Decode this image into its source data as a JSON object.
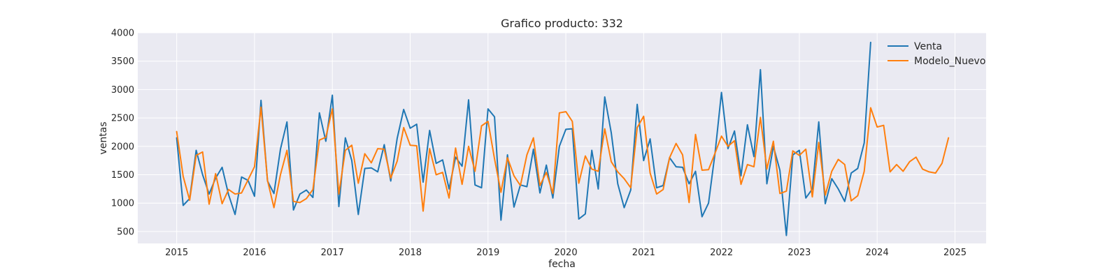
{
  "chart_data": {
    "type": "line",
    "title": "Grafico producto: 332",
    "xlabel": "fecha",
    "ylabel": "ventas",
    "x_ticks": [
      "2015",
      "2016",
      "2017",
      "2018",
      "2019",
      "2020",
      "2021",
      "2022",
      "2023",
      "2024",
      "2025"
    ],
    "y_ticks": [
      "500",
      "1000",
      "1500",
      "2000",
      "2500",
      "3000",
      "3500",
      "4000"
    ],
    "xlim": [
      2014.5,
      2025.4
    ],
    "ylim": [
      290,
      4000
    ],
    "grid": true,
    "legend_position": "top-right",
    "colors": {
      "background": "#eaeaf2",
      "Venta": "#1f77b4",
      "Modelo_Nuevo": "#ff7f0e"
    },
    "series": [
      {
        "name": "Venta",
        "start": "2015-01",
        "values": [
          2150,
          960,
          1080,
          1930,
          1500,
          1160,
          1440,
          1630,
          1150,
          800,
          1460,
          1400,
          1120,
          2810,
          1390,
          1170,
          1950,
          2430,
          880,
          1160,
          1230,
          1100,
          2590,
          2090,
          2900,
          940,
          2150,
          1750,
          800,
          1610,
          1620,
          1550,
          2030,
          1390,
          2140,
          2650,
          2320,
          2390,
          1370,
          2280,
          1700,
          1760,
          1250,
          1810,
          1650,
          2820,
          1320,
          1270,
          2660,
          2520,
          700,
          1850,
          930,
          1320,
          1290,
          1950,
          1180,
          1670,
          1090,
          2000,
          2300,
          2310,
          720,
          810,
          1930,
          1250,
          2870,
          2240,
          1340,
          920,
          1230,
          2740,
          1750,
          2130,
          1270,
          1310,
          1800,
          1640,
          1630,
          1340,
          1560,
          760,
          1000,
          1880,
          2950,
          1960,
          2270,
          1480,
          2380,
          1820,
          3350,
          1340,
          2000,
          1580,
          430,
          1850,
          1930,
          1090,
          1250,
          2430,
          990,
          1430,
          1250,
          1030,
          1530,
          1610,
          2060,
          3830
        ]
      },
      {
        "name": "Modelo_Nuevo",
        "start": "2015-01",
        "values": [
          2260,
          1470,
          1050,
          1840,
          1900,
          980,
          1520,
          990,
          1240,
          1160,
          1180,
          1410,
          1640,
          2690,
          1400,
          920,
          1500,
          1930,
          1030,
          1010,
          1080,
          1240,
          2110,
          2160,
          2660,
          1160,
          1930,
          2020,
          1350,
          1870,
          1710,
          1960,
          1950,
          1440,
          1740,
          2330,
          2020,
          2010,
          860,
          1960,
          1500,
          1540,
          1090,
          1970,
          1330,
          2000,
          1560,
          2360,
          2440,
          1780,
          1190,
          1800,
          1480,
          1310,
          1850,
          2150,
          1310,
          1540,
          1170,
          2590,
          2610,
          2440,
          1350,
          1830,
          1600,
          1560,
          2310,
          1730,
          1550,
          1430,
          1270,
          2330,
          2530,
          1530,
          1160,
          1240,
          1800,
          2050,
          1850,
          1010,
          2210,
          1580,
          1590,
          1880,
          2180,
          2000,
          2100,
          1330,
          1680,
          1640,
          2510,
          1600,
          2090,
          1170,
          1210,
          1920,
          1840,
          1950,
          1110,
          2070,
          1140,
          1560,
          1770,
          1680,
          1040,
          1130,
          1560,
          2680,
          2340,
          2370,
          1550,
          1680,
          1560,
          1730,
          1810,
          1600,
          1550,
          1530,
          1700,
          2150
        ]
      }
    ]
  }
}
